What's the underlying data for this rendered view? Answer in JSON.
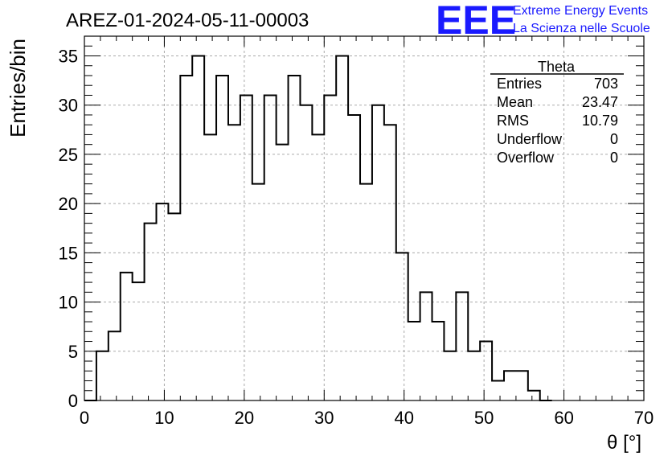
{
  "chart_data": {
    "type": "bar",
    "title": "AREZ-01-2024-05-11-00003",
    "xlabel": "θ [°]",
    "ylabel": "Entries/bin",
    "xlim": [
      0,
      70
    ],
    "ylim": [
      0,
      37
    ],
    "x_ticks": [
      0,
      10,
      20,
      30,
      40,
      50,
      60,
      70
    ],
    "y_ticks": [
      0,
      5,
      10,
      15,
      20,
      25,
      30,
      35
    ],
    "bin_width": 1.5,
    "bin_start": 0,
    "values": [
      0,
      5,
      7,
      13,
      12,
      18,
      20,
      19,
      33,
      35,
      27,
      33,
      28,
      31,
      22,
      31,
      26,
      33,
      30,
      27,
      31,
      35,
      29,
      22,
      30,
      28,
      15,
      8,
      11,
      8,
      5,
      11,
      5,
      6,
      2,
      3,
      3,
      1,
      0
    ],
    "grid": true,
    "line_color": "#000000",
    "stats_box": {
      "title": "Theta",
      "rows": [
        {
          "label": "Entries",
          "value": "703"
        },
        {
          "label": "Mean",
          "value": "23.47"
        },
        {
          "label": "RMS",
          "value": "10.79"
        },
        {
          "label": "Underflow",
          "value": "0"
        },
        {
          "label": "Overflow",
          "value": "0"
        }
      ]
    }
  },
  "logo": {
    "text": "EEE",
    "line1": "Extreme Energy Events",
    "line2": "La Scienza nelle Scuole",
    "color": "#1a1aff"
  }
}
